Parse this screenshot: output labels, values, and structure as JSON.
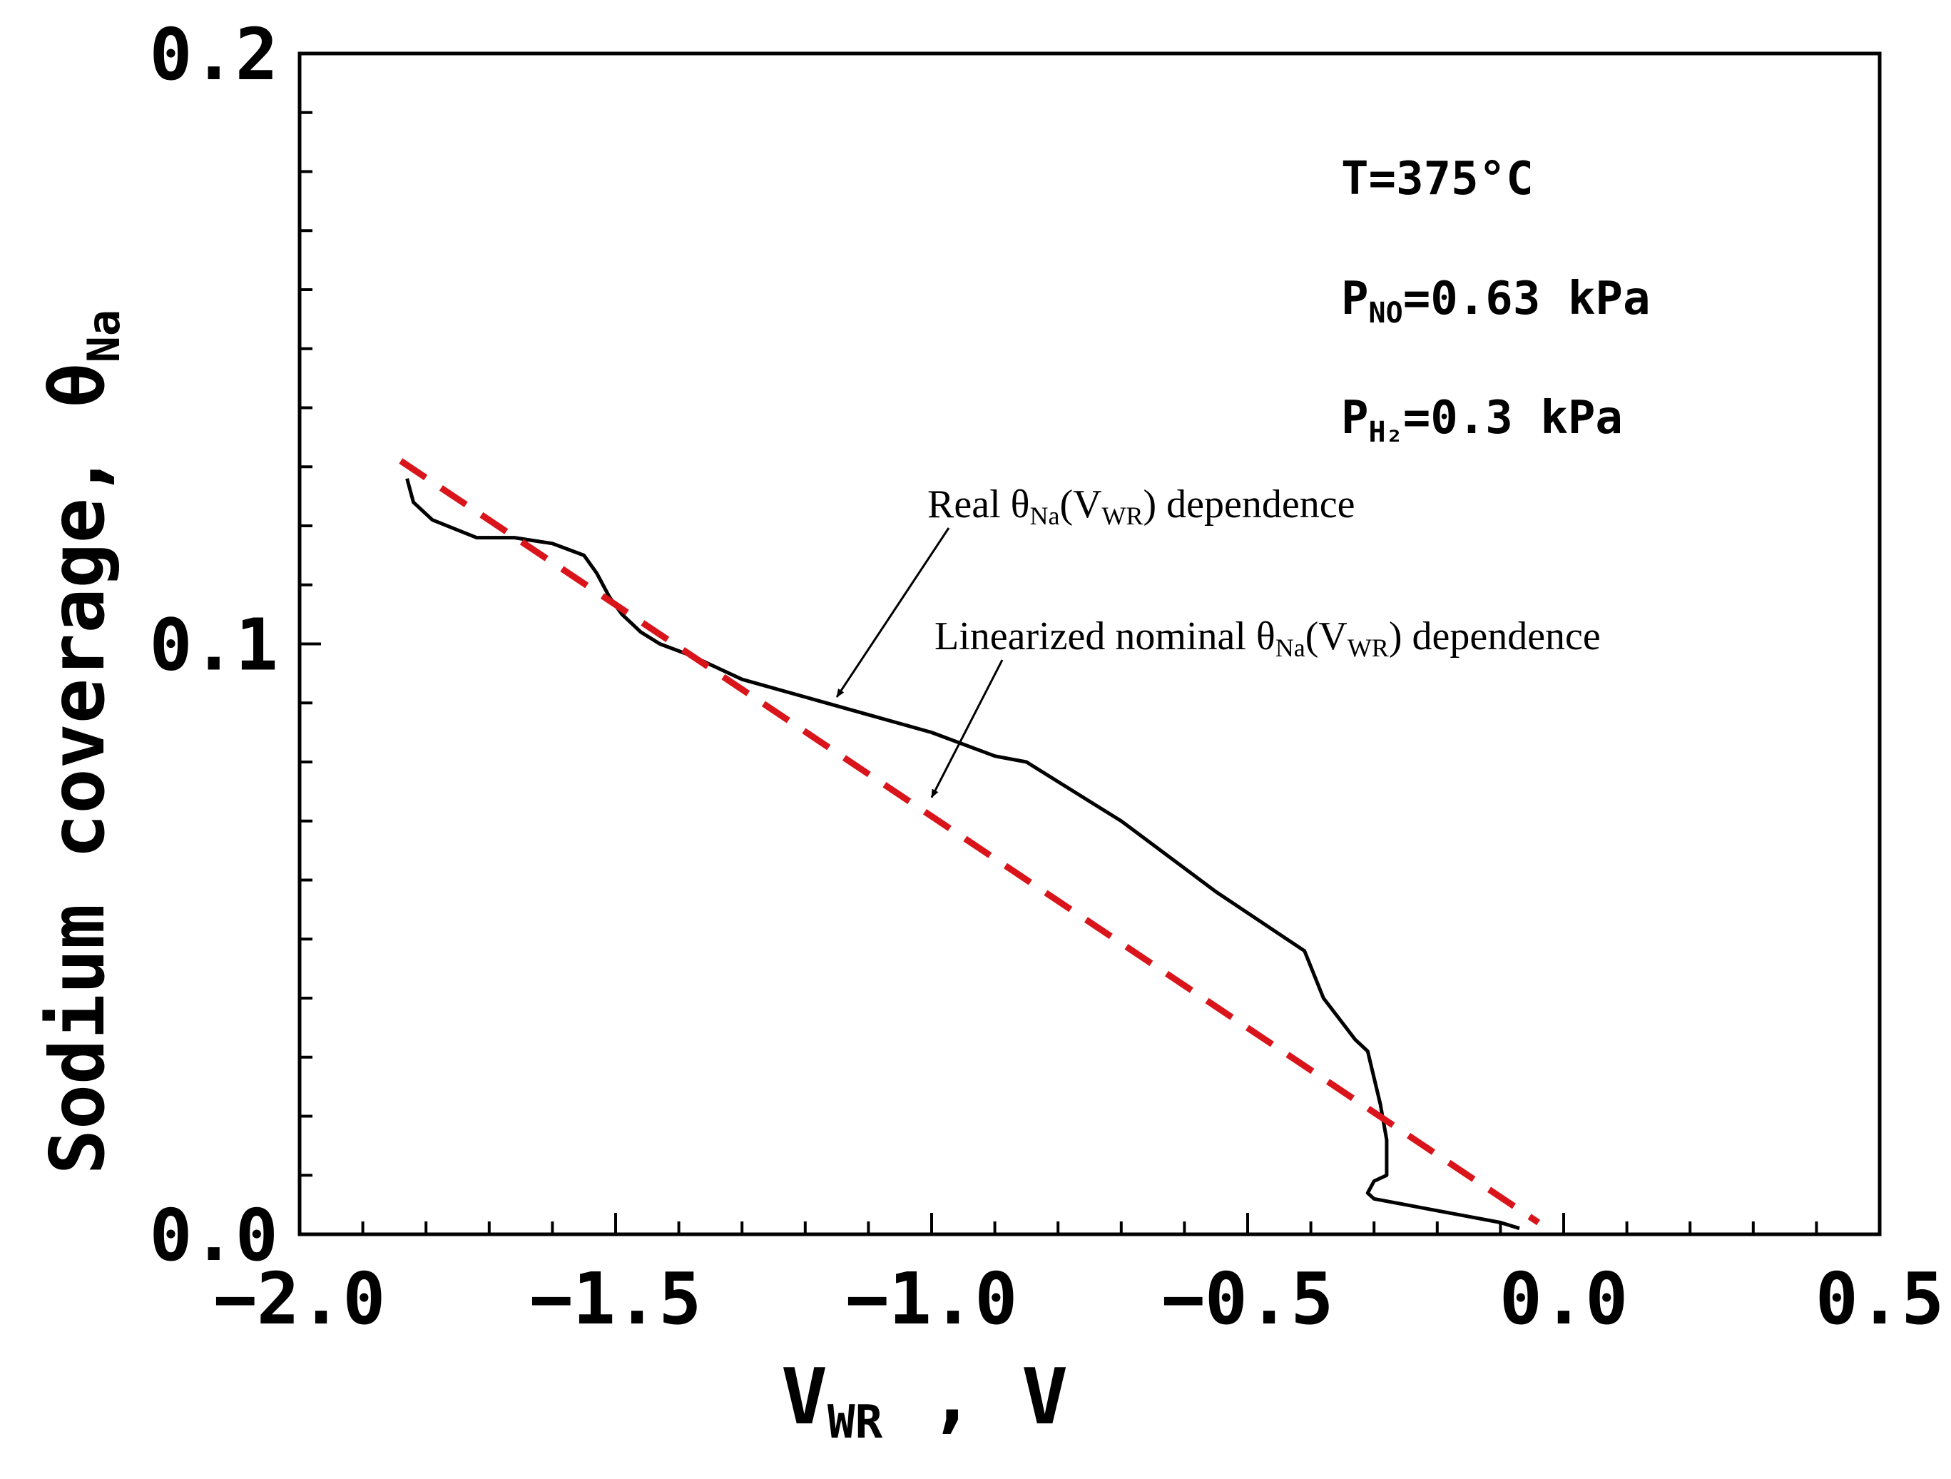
{
  "chart_data": {
    "type": "line",
    "title": "",
    "xlabel": {
      "main": "V",
      "sub": "WR",
      "suffix": " ,  V"
    },
    "ylabel": {
      "main": "Sodium coverage,  θ",
      "sub": "Na"
    },
    "xlim": [
      -2.0,
      0.5
    ],
    "ylim": [
      0.0,
      0.2
    ],
    "x_ticks": [
      "-2.0",
      "-1.5",
      "-1.0",
      "-0.5",
      "0.0",
      "0.5"
    ],
    "x_tick_values": [
      -2.0,
      -1.5,
      -1.0,
      -0.5,
      0.0,
      0.5
    ],
    "y_ticks": [
      "0.0",
      "0.1",
      "0.2"
    ],
    "y_tick_values": [
      0.0,
      0.1,
      0.2
    ],
    "conditions": [
      {
        "main": "T=375",
        "sub": "",
        "rest": "°C"
      },
      {
        "main": "P",
        "sub": "NO",
        "rest": "=0.63  kPa"
      },
      {
        "main": "P",
        "sub": "H₂",
        "rest": "=0.3  kPa"
      }
    ],
    "series": [
      {
        "name": "Real θNa(VWR) dependence",
        "color": "#000000",
        "style": "solid",
        "x": [
          -1.83,
          -1.82,
          -1.79,
          -1.72,
          -1.66,
          -1.6,
          -1.55,
          -1.53,
          -1.51,
          -1.49,
          -1.46,
          -1.43,
          -1.38,
          -1.3,
          -1.2,
          -1.1,
          -1.0,
          -0.9,
          -0.85,
          -0.7,
          -0.55,
          -0.41,
          -0.38,
          -0.33,
          -0.31,
          -0.29,
          -0.28,
          -0.28,
          -0.3,
          -0.31,
          -0.3,
          -0.25,
          -0.2,
          -0.15,
          -0.1,
          -0.07
        ],
        "y": [
          0.128,
          0.124,
          0.121,
          0.118,
          0.118,
          0.117,
          0.115,
          0.112,
          0.108,
          0.105,
          0.102,
          0.1,
          0.098,
          0.094,
          0.091,
          0.088,
          0.085,
          0.081,
          0.08,
          0.07,
          0.058,
          0.048,
          0.04,
          0.033,
          0.031,
          0.022,
          0.016,
          0.01,
          0.009,
          0.007,
          0.006,
          0.005,
          0.004,
          0.003,
          0.002,
          0.001
        ]
      },
      {
        "name": "Linearized nominal θNa(VWR) dependence",
        "color": "#d9151b",
        "style": "dashed",
        "x": [
          -1.84,
          -0.04
        ],
        "y": [
          0.131,
          0.002
        ]
      }
    ],
    "annotations": [
      {
        "lead": "Real θ",
        "sub": "Na",
        "mid": "(V",
        "sub2": "WR",
        "tail": ") dependence",
        "target_x": -1.15,
        "target_y": 0.091,
        "series": 0
      },
      {
        "lead": "Linearized nominal θ",
        "sub": "Na",
        "mid": "(V",
        "sub2": "WR",
        "tail": ") dependence",
        "target_x": -1.0,
        "target_y": 0.074,
        "series": 1
      }
    ]
  }
}
